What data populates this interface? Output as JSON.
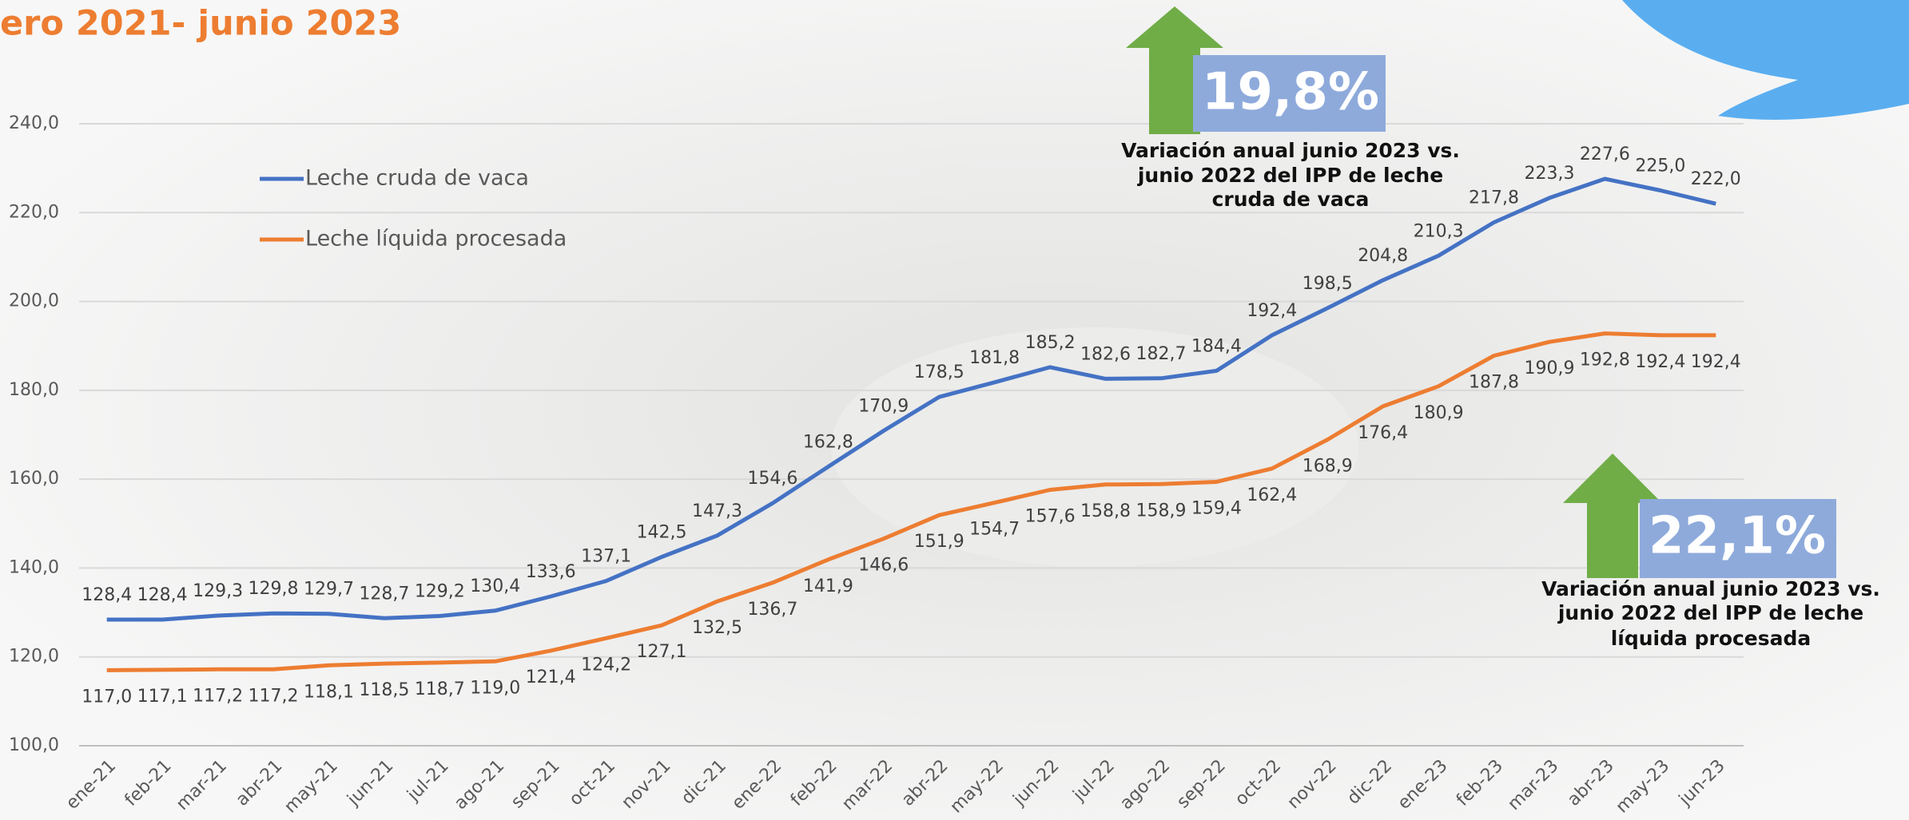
{
  "chart_data": {
    "type": "line",
    "title": "ero 2021- junio 2023",
    "categories": [
      "ene-21",
      "feb-21",
      "mar-21",
      "abr-21",
      "may-21",
      "jun-21",
      "jul-21",
      "ago-21",
      "sep-21",
      "oct-21",
      "nov-21",
      "dic-21",
      "ene-22",
      "feb-22",
      "mar-22",
      "abr-22",
      "may-22",
      "jun-22",
      "jul-22",
      "ago-22",
      "sep-22",
      "oct-22",
      "nov-22",
      "dic-22",
      "ene-23",
      "feb-23",
      "mar-23",
      "abr-23",
      "may-23",
      "jun-23"
    ],
    "series": [
      {
        "name": "Leche cruda de vaca",
        "color": "#4472c4",
        "values": [
          128.4,
          128.4,
          129.3,
          129.8,
          129.7,
          128.7,
          129.2,
          130.4,
          133.6,
          137.1,
          142.5,
          147.3,
          154.6,
          162.8,
          170.9,
          178.5,
          181.8,
          185.2,
          182.6,
          182.7,
          184.4,
          192.4,
          198.5,
          204.8,
          210.3,
          217.8,
          223.3,
          227.6,
          225.0,
          222.0
        ],
        "value_labels": [
          "128,4",
          "128,4",
          "129,3",
          "129,8",
          "129,7",
          "128,7",
          "129,2",
          "130,4",
          "133,6",
          "137,1",
          "142,5",
          "147,3",
          "154,6",
          "162,8",
          "170,9",
          "178,5",
          "181,8",
          "185,2",
          "182,6",
          "182,7",
          "184,4",
          "192,4",
          "198,5",
          "204,8",
          "210,3",
          "217,8",
          "223,3",
          "227,6",
          "225,0",
          "222,0"
        ]
      },
      {
        "name": "Leche líquida procesada",
        "color": "#ed7d31",
        "values": [
          117.0,
          117.1,
          117.2,
          117.2,
          118.1,
          118.5,
          118.7,
          119.0,
          121.4,
          124.2,
          127.1,
          132.5,
          136.7,
          141.9,
          146.6,
          151.9,
          154.7,
          157.6,
          158.8,
          158.9,
          159.4,
          162.4,
          168.9,
          176.4,
          180.9,
          187.8,
          190.9,
          192.8,
          192.4,
          192.4
        ],
        "value_labels": [
          "117,0",
          "117,1",
          "117,2",
          "117,2",
          "118,1",
          "118,5",
          "118,7",
          "119,0",
          "121,4",
          "124,2",
          "127,1",
          "132,5",
          "136,7",
          "141,9",
          "146,6",
          "151,9",
          "154,7",
          "157,6",
          "158,8",
          "158,9",
          "159,4",
          "162,4",
          "168,9",
          "176,4",
          "180,9",
          "187,8",
          "190,9",
          "192,8",
          "192,4",
          "192,4"
        ]
      }
    ],
    "ylim": [
      100,
      240
    ],
    "yticks": [
      {
        "value": 100,
        "label": "100,0"
      },
      {
        "value": 120,
        "label": "120,0"
      },
      {
        "value": 140,
        "label": "140,0"
      },
      {
        "value": 160,
        "label": "160,0"
      },
      {
        "value": 180,
        "label": "180,0"
      },
      {
        "value": 200,
        "label": "200,0"
      },
      {
        "value": 220,
        "label": "220,0"
      },
      {
        "value": 240,
        "label": "240,0"
      }
    ],
    "grid": true,
    "annotations": [
      {
        "label": "19,8%",
        "text": [
          "Variación anual junio 2023 vs.",
          "junio 2022 del IPP de leche",
          "cruda de vaca"
        ]
      },
      {
        "label": "22,1%",
        "text": [
          "Variación anual junio 2023 vs.",
          "junio 2022 del IPP de leche",
          "líquida procesada"
        ]
      }
    ]
  }
}
